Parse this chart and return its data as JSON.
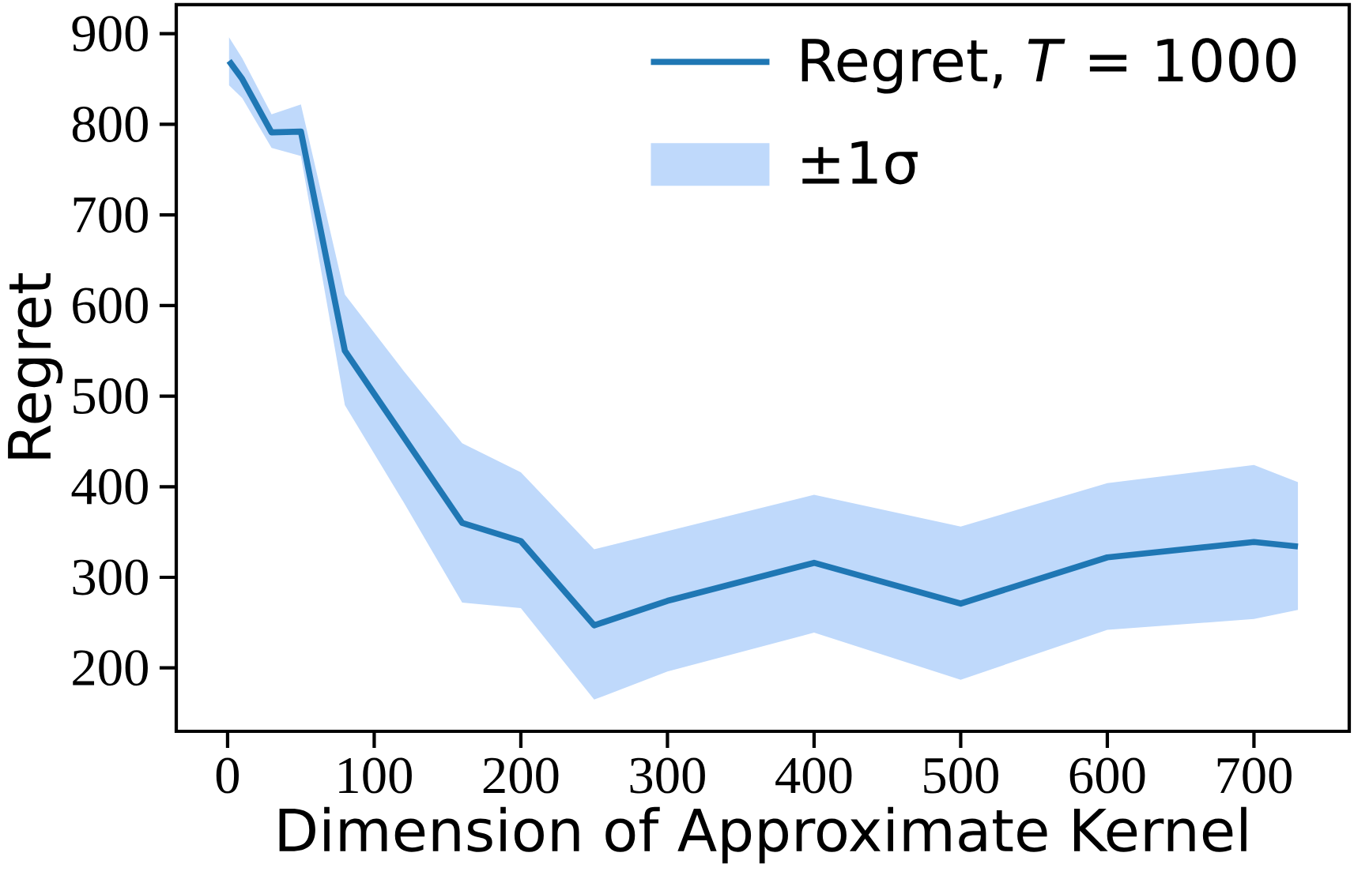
{
  "chart_data": {
    "type": "line",
    "xlabel": "Dimension of Approximate Kernel",
    "ylabel": "Regret",
    "xlim": [
      -35,
      765
    ],
    "ylim": [
      130,
      932
    ],
    "xticks": [
      0,
      100,
      200,
      300,
      400,
      500,
      600,
      700
    ],
    "yticks": [
      200,
      300,
      400,
      500,
      600,
      700,
      800,
      900
    ],
    "legend": "top right",
    "marker": "none",
    "line_style": "solid",
    "annotations": [
      "±1σ"
    ],
    "series": [
      {
        "name": "Regret, *T* = 1000",
        "color": "#1f77b4",
        "x": [
          1,
          10,
          30,
          50,
          80,
          120,
          160,
          200,
          250,
          300,
          400,
          500,
          600,
          700,
          730
        ],
        "values": [
          870,
          850,
          791,
          792,
          550,
          455,
          360,
          340,
          247,
          274,
          316,
          271,
          322,
          339,
          334
        ],
        "lower": [
          843,
          829,
          774,
          765,
          490,
          383,
          272,
          266,
          165,
          196,
          239,
          187,
          242,
          254,
          264
        ],
        "upper": [
          896,
          873,
          811,
          822,
          612,
          528,
          448,
          416,
          331,
          351,
          391,
          356,
          404,
          424,
          405
        ]
      }
    ]
  }
}
